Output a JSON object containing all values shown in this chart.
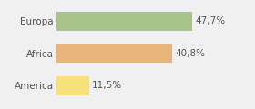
{
  "categories": [
    "America",
    "Africa",
    "Europa"
  ],
  "values": [
    11.5,
    40.8,
    47.7
  ],
  "labels": [
    "11,5%",
    "40,8%",
    "47,7%"
  ],
  "bar_colors": [
    "#f5e07a",
    "#e8b47a",
    "#a8c48a"
  ],
  "background_color": "#f0f0f0",
  "xlim": [
    0,
    68
  ],
  "bar_height": 0.6,
  "label_fontsize": 7.5,
  "tick_fontsize": 7.5
}
